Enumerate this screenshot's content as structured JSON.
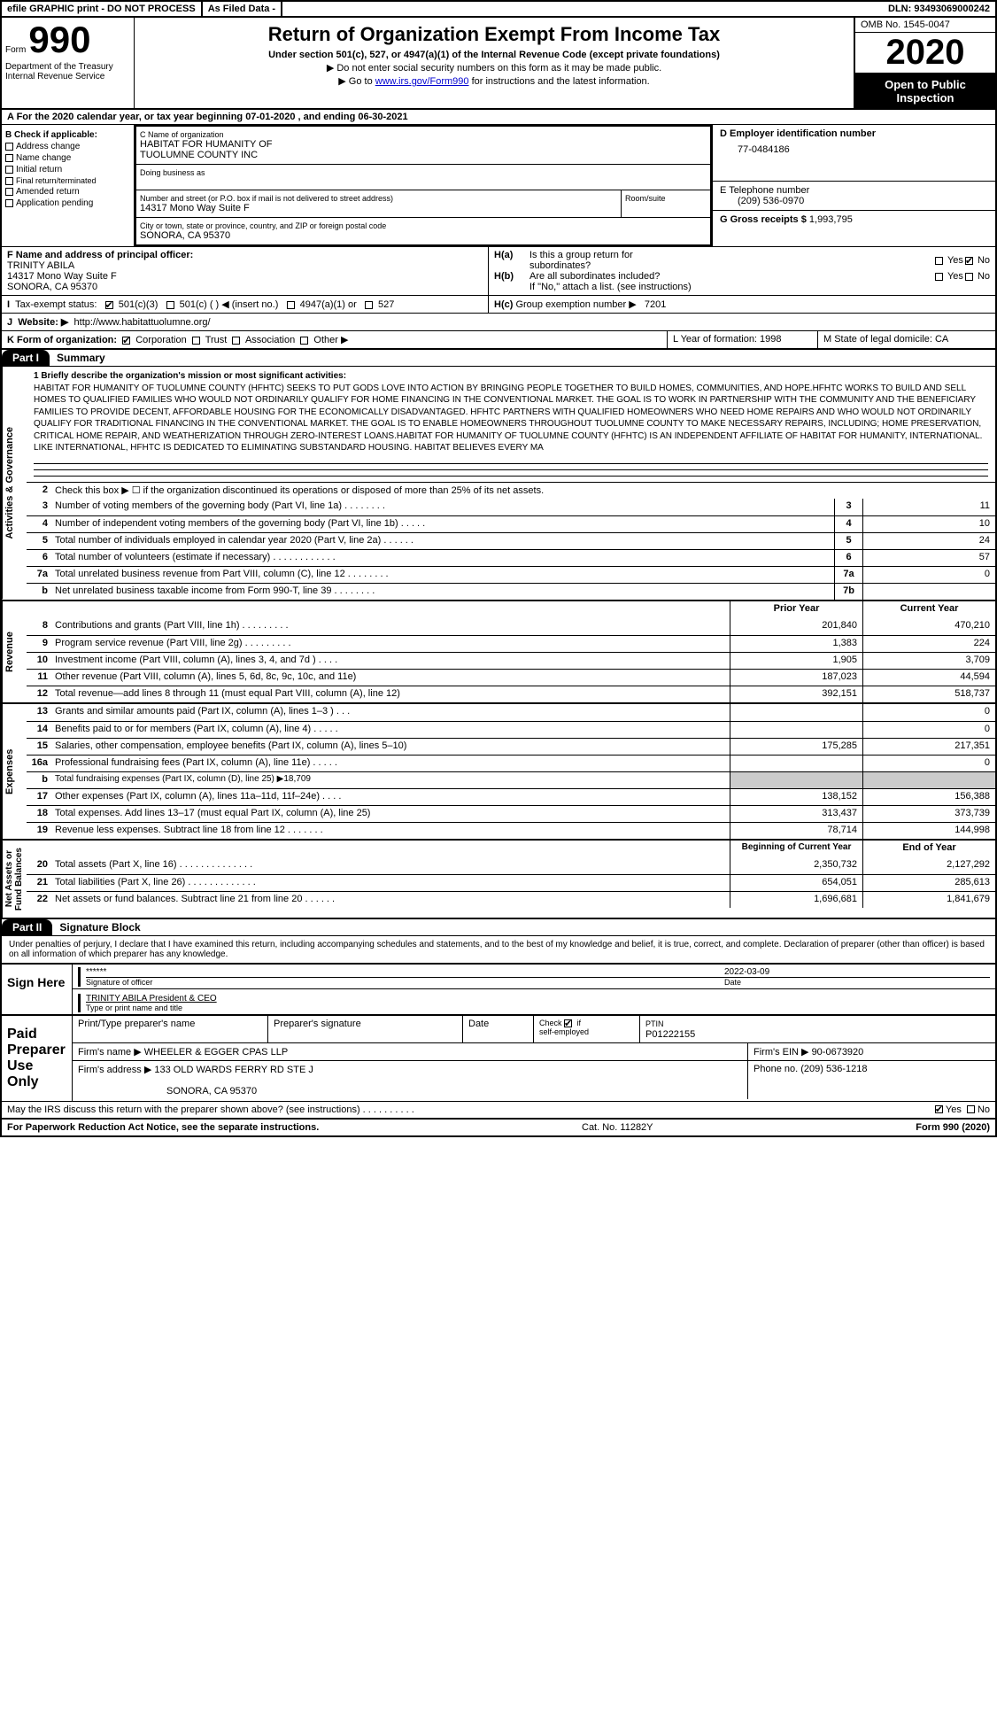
{
  "top": {
    "efile": "efile GRAPHIC print - DO NOT PROCESS",
    "filed": "As Filed Data -",
    "dln": "DLN: 93493069000242"
  },
  "header": {
    "form_label": "Form",
    "form_num": "990",
    "dept": "Department of the Treasury\nInternal Revenue Service",
    "title": "Return of Organization Exempt From Income Tax",
    "subtitle": "Under section 501(c), 527, or 4947(a)(1) of the Internal Revenue Code (except private foundations)",
    "inst1": "▶ Do not enter social security numbers on this form as it may be made public.",
    "inst2_pre": "▶ Go to ",
    "inst2_link": "www.irs.gov/Form990",
    "inst2_post": " for instructions and the latest information.",
    "omb": "OMB No. 1545-0047",
    "year": "2020",
    "inspect": "Open to Public Inspection"
  },
  "row_a": "A  For the 2020 calendar year, or tax year beginning 07-01-2020   , and ending 06-30-2021",
  "sec_b": {
    "title": "B Check if applicable:",
    "items": [
      "Address change",
      "Name change",
      "Initial return",
      "Final return/terminated",
      "Amended return",
      "Application pending"
    ]
  },
  "sec_c": {
    "name_lbl": "C Name of organization",
    "name": "HABITAT FOR HUMANITY OF\nTUOLUMNE COUNTY INC",
    "dba_lbl": "Doing business as",
    "addr_lbl": "Number and street (or P.O. box if mail is not delivered to street address)",
    "addr": "14317 Mono Way Suite F",
    "room_lbl": "Room/suite",
    "city_lbl": "City or town, state or province, country, and ZIP or foreign postal code",
    "city": "SONORA, CA  95370"
  },
  "sec_d": {
    "lbl": "D Employer identification number",
    "val": "77-0484186",
    "e_lbl": "E Telephone number",
    "e_val": "(209) 536-0970",
    "g_lbl": "G Gross receipts $ ",
    "g_val": "1,993,795"
  },
  "sec_f": {
    "lbl": "F Name and address of principal officer:",
    "name": "TRINITY ABILA",
    "addr1": "14317 Mono Way Suite F",
    "addr2": "SONORA, CA  95370"
  },
  "sec_h": {
    "a": "Is this a group return for",
    "a2": "subordinates?",
    "b": "Are all subordinates included?",
    "note": "If \"No,\" attach a list. (see instructions)",
    "c": "Group exemption number ▶",
    "c_val": "7201"
  },
  "sec_i": {
    "lbl": "Tax-exempt status:",
    "o1": "501(c)(3)",
    "o2": "501(c) (  ) ◀ (insert no.)",
    "o3": "4947(a)(1) or",
    "o4": "527"
  },
  "sec_j": {
    "lbl": "Website: ▶",
    "val": "http://www.habitattuolumne.org/"
  },
  "sec_k": {
    "lbl": "K Form of organization:",
    "opts": [
      "Corporation",
      "Trust",
      "Association",
      "Other ▶"
    ],
    "l": "L Year of formation: 1998",
    "m": "M State of legal domicile: CA"
  },
  "part1": {
    "tab": "Part I",
    "title": "Summary",
    "mission_lbl": "1  Briefly describe the organization's mission or most significant activities:",
    "mission": "HABITAT FOR HUMANITY OF TUOLUMNE COUNTY (HFHTC) SEEKS TO PUT GODS LOVE INTO ACTION BY BRINGING PEOPLE TOGETHER TO BUILD HOMES, COMMUNITIES, AND HOPE.HFHTC WORKS TO BUILD AND SELL HOMES TO QUALIFIED FAMILIES WHO WOULD NOT ORDINARILY QUALIFY FOR HOME FINANCING IN THE CONVENTIONAL MARKET. THE GOAL IS TO WORK IN PARTNERSHIP WITH THE COMMUNITY AND THE BENEFICIARY FAMILIES TO PROVIDE DECENT, AFFORDABLE HOUSING FOR THE ECONOMICALLY DISADVANTAGED. HFHTC PARTNERS WITH QUALIFIED HOMEOWNERS WHO NEED HOME REPAIRS AND WHO WOULD NOT ORDINARILY QUALIFY FOR TRADITIONAL FINANCING IN THE CONVENTIONAL MARKET. THE GOAL IS TO ENABLE HOMEOWNERS THROUGHOUT TUOLUMNE COUNTY TO MAKE NECESSARY REPAIRS, INCLUDING; HOME PRESERVATION, CRITICAL HOME REPAIR, AND WEATHERIZATION THROUGH ZERO-INTEREST LOANS.HABITAT FOR HUMANITY OF TUOLUMNE COUNTY (HFHTC) IS AN INDEPENDENT AFFILIATE OF HABITAT FOR HUMANITY, INTERNATIONAL. LIKE INTERNATIONAL, HFHTC IS DEDICATED TO ELIMINATING SUBSTANDARD HOUSING. HABITAT BELIEVES EVERY MA",
    "l2": "Check this box ▶ ☐ if the organization discontinued its operations or disposed of more than 25% of its net assets.",
    "vert1": "Activities & Governance",
    "vert2": "Revenue",
    "vert3": "Expenses",
    "vert4": "Net Assets or\nFund Balances",
    "lines_gov": [
      {
        "n": "3",
        "t": "Number of voting members of the governing body (Part VI, line 1a)  .    .    .    .    .    .    .    .",
        "b": "3",
        "v": "11"
      },
      {
        "n": "4",
        "t": "Number of independent voting members of the governing body (Part VI, line 1b)    .    .    .    .    .",
        "b": "4",
        "v": "10"
      },
      {
        "n": "5",
        "t": "Total number of individuals employed in calendar year 2020 (Part V, line 2a)    .    .    .    .    .    .",
        "b": "5",
        "v": "24"
      },
      {
        "n": "6",
        "t": "Total number of volunteers (estimate if necessary)   .    .    .    .    .    .    .    .    .    .    .    .",
        "b": "6",
        "v": "57"
      },
      {
        "n": "7a",
        "t": "Total unrelated business revenue from Part VIII, column (C), line 12  .    .    .    .    .    .    .    .",
        "b": "7a",
        "v": "0"
      },
      {
        "n": "b",
        "t": "Net unrelated business taxable income from Form 990-T, line 39   .    .    .    .    .    .    .    .",
        "b": "7b",
        "v": ""
      }
    ],
    "hdr_prior": "Prior Year",
    "hdr_curr": "Current Year",
    "lines_rev": [
      {
        "n": "8",
        "t": "Contributions and grants (Part VIII, line 1h)   .    .    .    .    .    .    .    .    .",
        "p": "201,840",
        "c": "470,210"
      },
      {
        "n": "9",
        "t": "Program service revenue (Part VIII, line 2g)    .    .    .    .    .    .    .    .    .",
        "p": "1,383",
        "c": "224"
      },
      {
        "n": "10",
        "t": "Investment income (Part VIII, column (A), lines 3, 4, and 7d )    .    .    .    .",
        "p": "1,905",
        "c": "3,709"
      },
      {
        "n": "11",
        "t": "Other revenue (Part VIII, column (A), lines 5, 6d, 8c, 9c, 10c, and 11e)",
        "p": "187,023",
        "c": "44,594"
      },
      {
        "n": "12",
        "t": "Total revenue—add lines 8 through 11 (must equal Part VIII, column (A), line 12)",
        "p": "392,151",
        "c": "518,737"
      }
    ],
    "lines_exp": [
      {
        "n": "13",
        "t": "Grants and similar amounts paid (Part IX, column (A), lines 1–3 )  .    .    .",
        "p": "",
        "c": "0"
      },
      {
        "n": "14",
        "t": "Benefits paid to or for members (Part IX, column (A), line 4)  .    .    .    .    .",
        "p": "",
        "c": "0"
      },
      {
        "n": "15",
        "t": "Salaries, other compensation, employee benefits (Part IX, column (A), lines 5–10)",
        "p": "175,285",
        "c": "217,351"
      },
      {
        "n": "16a",
        "t": "Professional fundraising fees (Part IX, column (A), line 11e)   .    .    .    .    .",
        "p": "",
        "c": "0"
      },
      {
        "n": "b",
        "t": "Total fundraising expenses (Part IX, column (D), line 25) ▶18,709",
        "p": "",
        "c": "",
        "noval": true
      },
      {
        "n": "17",
        "t": "Other expenses (Part IX, column (A), lines 11a–11d, 11f–24e)    .    .    .    .",
        "p": "138,152",
        "c": "156,388"
      },
      {
        "n": "18",
        "t": "Total expenses. Add lines 13–17 (must equal Part IX, column (A), line 25)",
        "p": "313,437",
        "c": "373,739"
      },
      {
        "n": "19",
        "t": "Revenue less expenses. Subtract line 18 from line 12  .    .    .    .    .    .    .",
        "p": "78,714",
        "c": "144,998"
      }
    ],
    "hdr_beg": "Beginning of Current Year",
    "hdr_end": "End of Year",
    "lines_net": [
      {
        "n": "20",
        "t": "Total assets (Part X, line 16)  .    .    .    .    .    .    .    .    .    .    .    .    .    .",
        "p": "2,350,732",
        "c": "2,127,292"
      },
      {
        "n": "21",
        "t": "Total liabilities (Part X, line 26)  .    .    .    .    .    .    .    .    .    .    .    .    .",
        "p": "654,051",
        "c": "285,613"
      },
      {
        "n": "22",
        "t": "Net assets or fund balances. Subtract line 21 from line 20  .    .    .    .    .    .",
        "p": "1,696,681",
        "c": "1,841,679"
      }
    ]
  },
  "part2": {
    "tab": "Part II",
    "title": "Signature Block",
    "decl": "Under penalties of perjury, I declare that I have examined this return, including accompanying schedules and statements, and to the best of my knowledge and belief, it is true, correct, and complete. Declaration of preparer (other than officer) is based on all information of which preparer has any knowledge.",
    "sign": "Sign Here",
    "stars": "******",
    "sig_lbl": "Signature of officer",
    "date": "2022-03-09",
    "date_lbl": "Date",
    "name": "TRINITY ABILA President & CEO",
    "name_lbl": "Type or print name and title",
    "paid": "Paid Preparer Use Only",
    "prep_name_lbl": "Print/Type preparer's name",
    "prep_sig_lbl": "Preparer's signature",
    "prep_date_lbl": "Date",
    "check_lbl": "Check ☑ if self-employed",
    "ptin_lbl": "PTIN",
    "ptin": "P01222155",
    "firm_name_lbl": "Firm's name    ▶",
    "firm_name": "WHEELER & EGGER CPAS LLP",
    "firm_ein_lbl": "Firm's EIN ▶",
    "firm_ein": "90-0673920",
    "firm_addr_lbl": "Firm's address ▶",
    "firm_addr": "133 OLD WARDS FERRY RD STE J",
    "firm_city": "SONORA, CA  95370",
    "phone_lbl": "Phone no.",
    "phone": "(209) 536-1218",
    "discuss": "May the IRS discuss this return with the preparer shown above? (see instructions)    .    .    .    .    .    .    .    .    .    ."
  },
  "footer": {
    "left": "For Paperwork Reduction Act Notice, see the separate instructions.",
    "mid": "Cat. No. 11282Y",
    "right": "Form 990 (2020)"
  }
}
